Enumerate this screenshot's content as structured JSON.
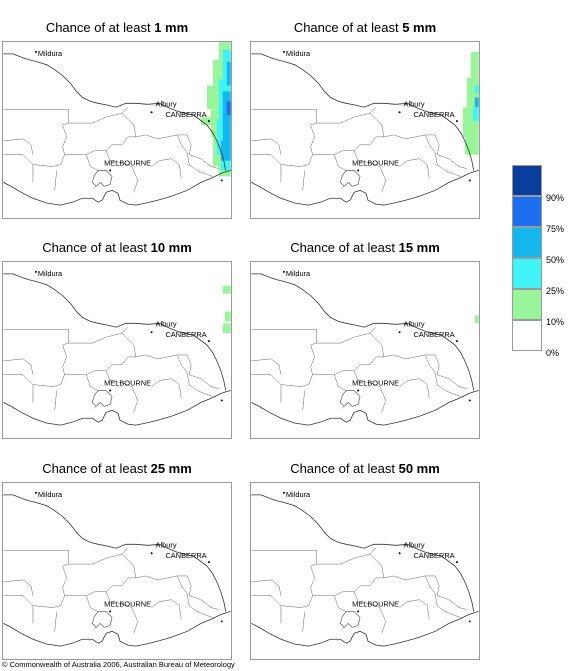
{
  "panels": [
    {
      "title_prefix": "Chance of at least ",
      "title_value": "1 mm",
      "cities": {
        "mildura": "Mildura",
        "canberra": "CANBERRA",
        "albury": "Albury",
        "melbourne": "MELBOURNE"
      },
      "rain_level": "high"
    },
    {
      "title_prefix": "Chance of at least ",
      "title_value": "5 mm",
      "cities": {
        "mildura": "Mildura",
        "canberra": "CANBERRA",
        "albury": "Albury",
        "melbourne": "MELBOURNE"
      },
      "rain_level": "medium"
    },
    {
      "title_prefix": "Chance of at least ",
      "title_value": "10 mm",
      "cities": {
        "mildura": "Mildura",
        "canberra": "CANBERRA",
        "albury": "Albury",
        "melbourne": "MELBOURNE"
      },
      "rain_level": "low"
    },
    {
      "title_prefix": "Chance of at least ",
      "title_value": "15 mm",
      "cities": {
        "mildura": "Mildura",
        "canberra": "CANBERRA",
        "albury": "Albury",
        "melbourne": "MELBOURNE"
      },
      "rain_level": "trace"
    },
    {
      "title_prefix": "Chance of at least ",
      "title_value": "25 mm",
      "cities": {
        "mildura": "Mildura",
        "canberra": "CANBERRA",
        "albury": "Albury",
        "melbourne": "MELBOURNE"
      },
      "rain_level": "none"
    },
    {
      "title_prefix": "Chance of at least ",
      "title_value": "50 mm",
      "cities": {
        "mildura": "Mildura",
        "canberra": "CANBERRA",
        "albury": "Albury",
        "melbourne": "MELBOURNE"
      },
      "rain_level": "none"
    }
  ],
  "legend": {
    "labels": [
      "90%",
      "75%",
      "50%",
      "25%",
      "10%",
      "0%"
    ],
    "colors": [
      "#0a3d9c",
      "#1e6ff0",
      "#14b6ee",
      "#3ff3f6",
      "#99f59a",
      "#ffffff"
    ]
  },
  "copyright": "© Commonwealth of Australia 2006, Australian Bureau of Meteorology"
}
